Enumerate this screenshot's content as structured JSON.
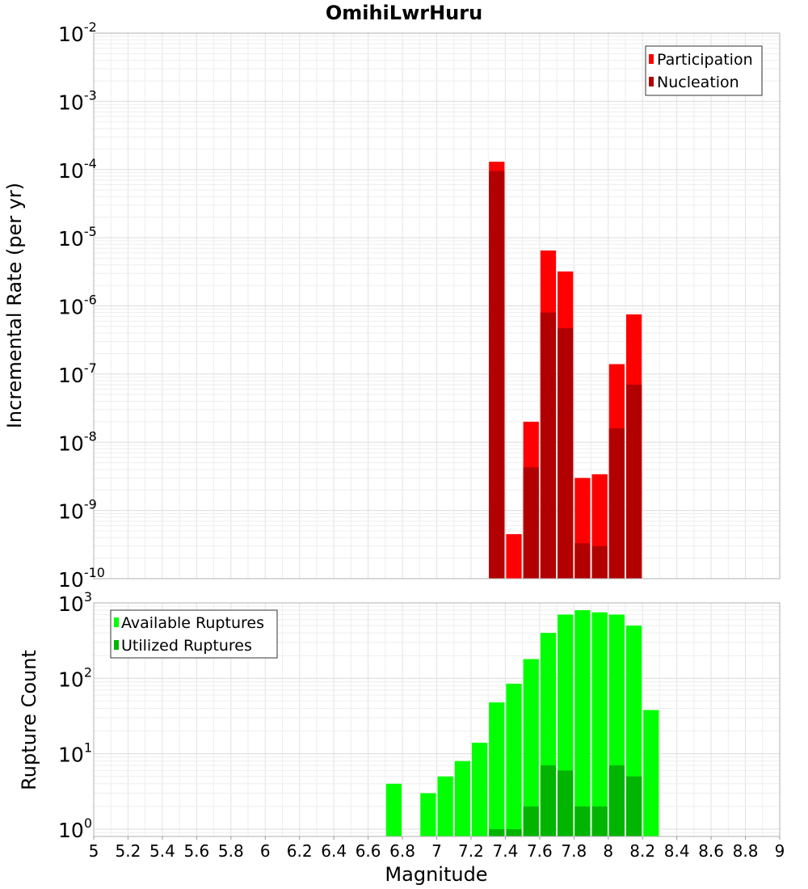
{
  "chart_data": {
    "title": "OmihiLwrHuru",
    "xlabel": "Magnitude",
    "xlim": [
      5,
      9
    ],
    "xticks": [
      "5",
      "5.2",
      "5.4",
      "5.6",
      "5.8",
      "6",
      "6.2",
      "6.4",
      "6.6",
      "6.8",
      "7",
      "7.2",
      "7.4",
      "7.6",
      "7.8",
      "8",
      "8.2",
      "8.4",
      "8.6",
      "8.8",
      "9"
    ],
    "panels": [
      {
        "type": "bar",
        "ylabel": "Incremental Rate (per yr)",
        "yscale": "log",
        "ylim": [
          1e-10,
          0.01
        ],
        "ytick_exponents": [
          "-10",
          "-9",
          "-8",
          "-7",
          "-6",
          "-5",
          "-4",
          "-3",
          "-2"
        ],
        "legend_position": "top-right",
        "series": [
          {
            "name": "Participation",
            "color": "#ff0000",
            "x": [
              7.35,
              7.45,
              7.55,
              7.65,
              7.75,
              7.85,
              7.95,
              8.05,
              8.15
            ],
            "values": [
              0.00013,
              4.5e-10,
              2e-08,
              6.5e-06,
              3.2e-06,
              3e-09,
              3.4e-09,
              1.4e-07,
              7.5e-07
            ]
          },
          {
            "name": "Nucleation",
            "color": "#b20000",
            "x": [
              7.35,
              7.55,
              7.65,
              7.75,
              7.85,
              7.95,
              8.05,
              8.15
            ],
            "values": [
              9.5e-05,
              4.3e-09,
              8e-07,
              4.7e-07,
              3.3e-10,
              3e-10,
              1.6e-08,
              7e-08
            ]
          }
        ]
      },
      {
        "type": "bar",
        "ylabel": "Rupture Count",
        "yscale": "log",
        "ylim": [
          0.8,
          1000
        ],
        "ytick_exponents": [
          "0",
          "1",
          "2",
          "3"
        ],
        "legend_position": "top-left",
        "series": [
          {
            "name": "Available Ruptures",
            "color": "#00ff00",
            "x": [
              6.75,
              6.95,
              7.05,
              7.15,
              7.25,
              7.35,
              7.45,
              7.55,
              7.65,
              7.75,
              7.85,
              7.95,
              8.05,
              8.15,
              8.25
            ],
            "values": [
              4,
              3,
              5,
              8,
              14,
              48,
              85,
              180,
              400,
              700,
              800,
              750,
              700,
              500,
              38
            ]
          },
          {
            "name": "Utilized Ruptures",
            "color": "#00b400",
            "x": [
              7.35,
              7.45,
              7.55,
              7.65,
              7.75,
              7.85,
              7.95,
              8.05,
              8.15
            ],
            "values": [
              1,
              1,
              2,
              7,
              6,
              2,
              2,
              7,
              5
            ]
          }
        ]
      }
    ]
  }
}
